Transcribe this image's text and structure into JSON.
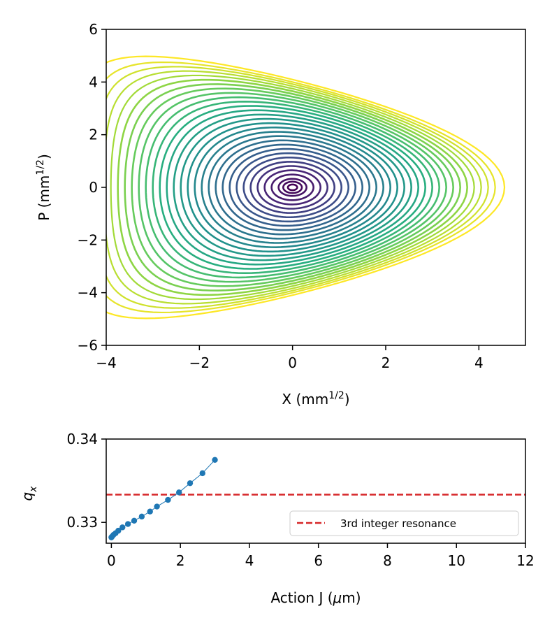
{
  "chart_data": [
    {
      "type": "scatter",
      "title": "",
      "xlabel": "X (mm",
      "xlabel_sup": "1/2",
      "xlabel_end": ")",
      "ylabel": "P (mm",
      "ylabel_sup": "1/2",
      "ylabel_end": ")",
      "xlim": [
        -4,
        5
      ],
      "ylim": [
        -6,
        6
      ],
      "xticks": [
        -4,
        -2,
        0,
        2,
        4
      ],
      "yticks": [
        -6,
        -4,
        -2,
        0,
        2,
        4,
        6
      ],
      "xtick_labels": [
        "−4",
        "−2",
        "0",
        "2",
        "4"
      ],
      "ytick_labels": [
        "−6",
        "−4",
        "−2",
        "0",
        "2",
        "4",
        "6"
      ],
      "grid": false,
      "colormap": "viridis",
      "orbit_amplitudes_x": [
        0.1,
        0.2,
        0.3,
        0.45,
        0.6,
        0.75,
        0.9,
        1.05,
        1.2,
        1.35,
        1.5,
        1.65,
        1.8,
        1.95,
        2.1,
        2.25,
        2.4,
        2.55,
        2.7,
        2.85,
        3.0,
        3.15,
        3.3,
        3.45,
        3.6,
        3.75,
        3.9,
        4.05,
        4.2,
        4.35,
        4.55
      ],
      "orbit_center": [
        0,
        0
      ]
    },
    {
      "type": "line",
      "xlabel": "Action J (",
      "xlabel_mu": "μ",
      "xlabel_end": "m)",
      "ylabel": "q",
      "ylabel_sub": "x",
      "xlim": [
        -0.15,
        12
      ],
      "ylim": [
        0.3275,
        0.34
      ],
      "xticks": [
        0,
        2,
        4,
        6,
        8,
        10,
        12
      ],
      "yticks": [
        0.33,
        0.34
      ],
      "xtick_labels": [
        "0",
        "2",
        "4",
        "6",
        "8",
        "10",
        "12"
      ],
      "ytick_labels": [
        "0.33",
        "0.34"
      ],
      "grid": false,
      "series": [
        {
          "color": "#1f77b4",
          "x": [
            0.0,
            0.02,
            0.06,
            0.12,
            0.2,
            0.32,
            0.48,
            0.66,
            0.88,
            1.12,
            1.32,
            1.64,
            1.96,
            2.28,
            2.64,
            3.0
          ],
          "y": [
            0.3282,
            0.3283,
            0.3285,
            0.3287,
            0.329,
            0.3294,
            0.3298,
            0.3302,
            0.3307,
            0.3313,
            0.3319,
            0.3327,
            0.3336,
            0.3347,
            0.3359,
            0.3375
          ]
        },
        {
          "name": "3rd integer resonance",
          "color": "#d62728",
          "style": "dashed",
          "y_constant": 0.33333
        }
      ],
      "legend_position": "lower-right"
    }
  ]
}
